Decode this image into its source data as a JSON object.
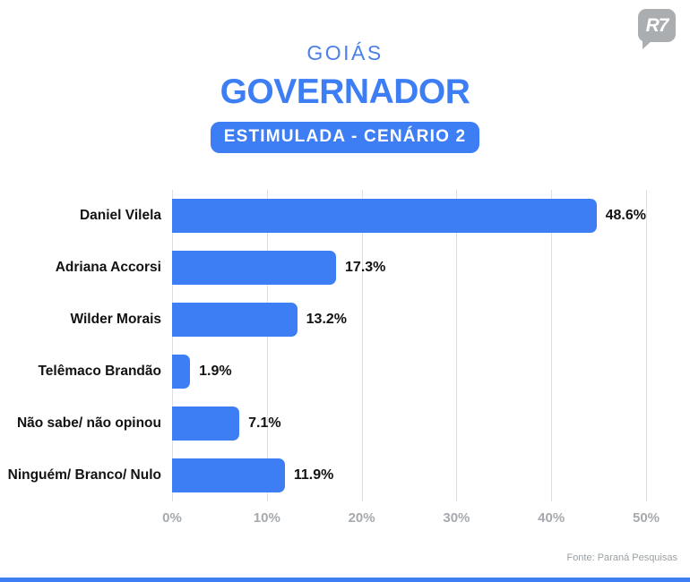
{
  "header": {
    "logo_text": "R7",
    "region": "GOIÁS",
    "title": "GOVERNADOR",
    "badge": "ESTIMULADA - CENÁRIO 2"
  },
  "chart_data": {
    "type": "bar",
    "orientation": "horizontal",
    "title": "GOVERNADOR",
    "subtitle": "ESTIMULADA - CENÁRIO 2",
    "categories": [
      "Daniel Vilela",
      "Adriana Accorsi",
      "Wilder Morais",
      "Telêmaco Brandão",
      "Não sabe/ não opinou",
      "Ninguém/ Branco/ Nulo"
    ],
    "values": [
      48.6,
      17.3,
      13.2,
      1.9,
      7.1,
      11.9
    ],
    "value_labels": [
      "48.6%",
      "17.3%",
      "13.2%",
      "1.9%",
      "7.1%",
      "11.9%"
    ],
    "xlim": [
      0,
      50
    ],
    "x_ticks": [
      "0%",
      "10%",
      "20%",
      "30%",
      "40%",
      "50%"
    ],
    "grid": "vertical-gridlines-on",
    "legend": "none"
  },
  "footer": {
    "source": "Fonte: Paraná Pesquisas"
  },
  "colors": {
    "accent": "#3D7EF5",
    "bar": "#3D7EF5",
    "region_title": "#4A80E8",
    "axis_text": "#A6AAAE",
    "gridline": "#DCDEE1",
    "label_text": "#121212",
    "logo_gray": "#ABAEB0"
  }
}
